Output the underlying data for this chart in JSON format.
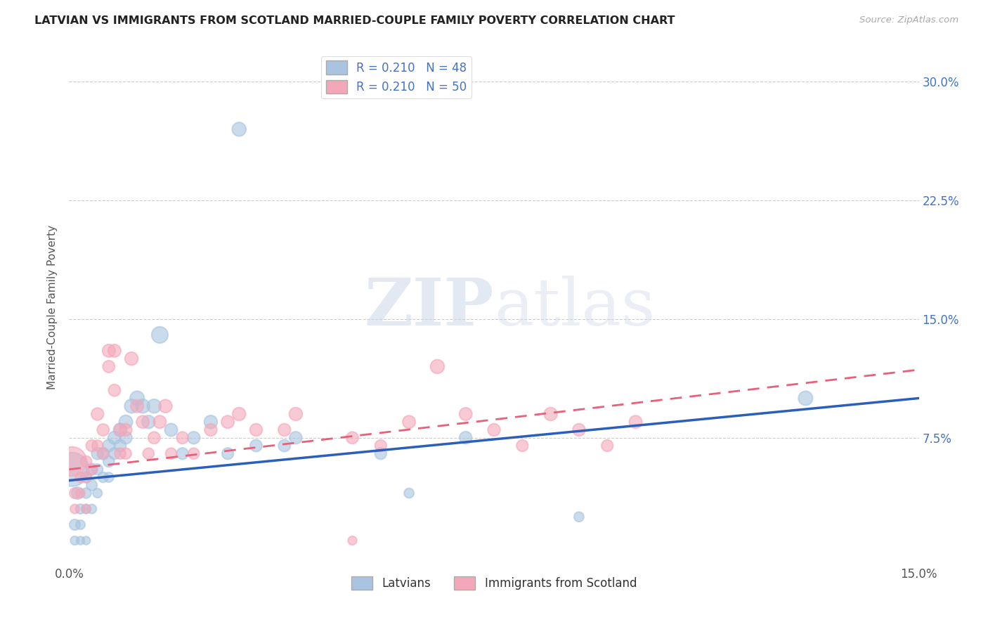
{
  "title": "LATVIAN VS IMMIGRANTS FROM SCOTLAND MARRIED-COUPLE FAMILY POVERTY CORRELATION CHART",
  "source": "Source: ZipAtlas.com",
  "ylabel": "Married-Couple Family Poverty",
  "xlim": [
    0,
    0.15
  ],
  "ylim": [
    -0.005,
    0.32
  ],
  "ytick_vals": [
    0,
    0.075,
    0.15,
    0.225,
    0.3
  ],
  "xtick_vals": [
    0,
    0.03,
    0.06,
    0.09,
    0.12,
    0.15
  ],
  "latvian_color": "#a8c4e0",
  "scotland_color": "#f4a7b9",
  "line_latvian_color": "#2b5fba",
  "line_scotland_color": "#e8607a",
  "tick_color": "#4472c4",
  "latvian_x": [
    0.0005,
    0.001,
    0.001,
    0.0015,
    0.002,
    0.002,
    0.002,
    0.003,
    0.003,
    0.003,
    0.003,
    0.004,
    0.004,
    0.004,
    0.005,
    0.005,
    0.005,
    0.006,
    0.006,
    0.007,
    0.007,
    0.007,
    0.008,
    0.008,
    0.009,
    0.009,
    0.01,
    0.01,
    0.011,
    0.012,
    0.013,
    0.014,
    0.015,
    0.016,
    0.018,
    0.02,
    0.022,
    0.025,
    0.028,
    0.038,
    0.04,
    0.055,
    0.06,
    0.07,
    0.09,
    0.13,
    0.03,
    0.033
  ],
  "latvian_y": [
    0.055,
    0.02,
    0.01,
    0.04,
    0.03,
    0.02,
    0.01,
    0.05,
    0.04,
    0.03,
    0.01,
    0.055,
    0.045,
    0.03,
    0.065,
    0.055,
    0.04,
    0.065,
    0.05,
    0.07,
    0.06,
    0.05,
    0.075,
    0.065,
    0.08,
    0.07,
    0.085,
    0.075,
    0.095,
    0.1,
    0.095,
    0.085,
    0.095,
    0.14,
    0.08,
    0.065,
    0.075,
    0.085,
    0.065,
    0.07,
    0.075,
    0.065,
    0.04,
    0.075,
    0.025,
    0.1,
    0.27,
    0.07
  ],
  "scotland_x": [
    0.0005,
    0.001,
    0.001,
    0.002,
    0.002,
    0.003,
    0.003,
    0.003,
    0.004,
    0.004,
    0.005,
    0.005,
    0.006,
    0.006,
    0.007,
    0.007,
    0.008,
    0.008,
    0.009,
    0.009,
    0.01,
    0.01,
    0.011,
    0.012,
    0.013,
    0.014,
    0.015,
    0.016,
    0.017,
    0.018,
    0.02,
    0.022,
    0.025,
    0.028,
    0.03,
    0.033,
    0.038,
    0.04,
    0.05,
    0.05,
    0.055,
    0.06,
    0.065,
    0.07,
    0.075,
    0.08,
    0.085,
    0.09,
    0.095,
    0.1
  ],
  "scotland_y": [
    0.06,
    0.04,
    0.03,
    0.05,
    0.04,
    0.06,
    0.05,
    0.03,
    0.07,
    0.055,
    0.09,
    0.07,
    0.08,
    0.065,
    0.13,
    0.12,
    0.13,
    0.105,
    0.08,
    0.065,
    0.08,
    0.065,
    0.125,
    0.095,
    0.085,
    0.065,
    0.075,
    0.085,
    0.095,
    0.065,
    0.075,
    0.065,
    0.08,
    0.085,
    0.09,
    0.08,
    0.08,
    0.09,
    0.075,
    0.01,
    0.07,
    0.085,
    0.12,
    0.09,
    0.08,
    0.07,
    0.09,
    0.08,
    0.07,
    0.085
  ],
  "latvian_sizes": [
    1200,
    120,
    80,
    150,
    100,
    90,
    70,
    130,
    110,
    90,
    70,
    140,
    120,
    90,
    150,
    120,
    90,
    150,
    110,
    160,
    130,
    100,
    170,
    140,
    180,
    150,
    190,
    160,
    200,
    210,
    200,
    180,
    200,
    280,
    170,
    140,
    160,
    180,
    140,
    150,
    160,
    140,
    100,
    160,
    100,
    210,
    200,
    150
  ],
  "scotland_sizes": [
    900,
    120,
    90,
    110,
    90,
    130,
    110,
    80,
    140,
    110,
    160,
    130,
    150,
    120,
    170,
    150,
    170,
    150,
    160,
    130,
    160,
    130,
    180,
    170,
    170,
    130,
    150,
    170,
    180,
    130,
    150,
    130,
    160,
    170,
    180,
    160,
    160,
    180,
    150,
    80,
    140,
    170,
    200,
    170,
    160,
    140,
    180,
    160,
    140,
    170
  ]
}
